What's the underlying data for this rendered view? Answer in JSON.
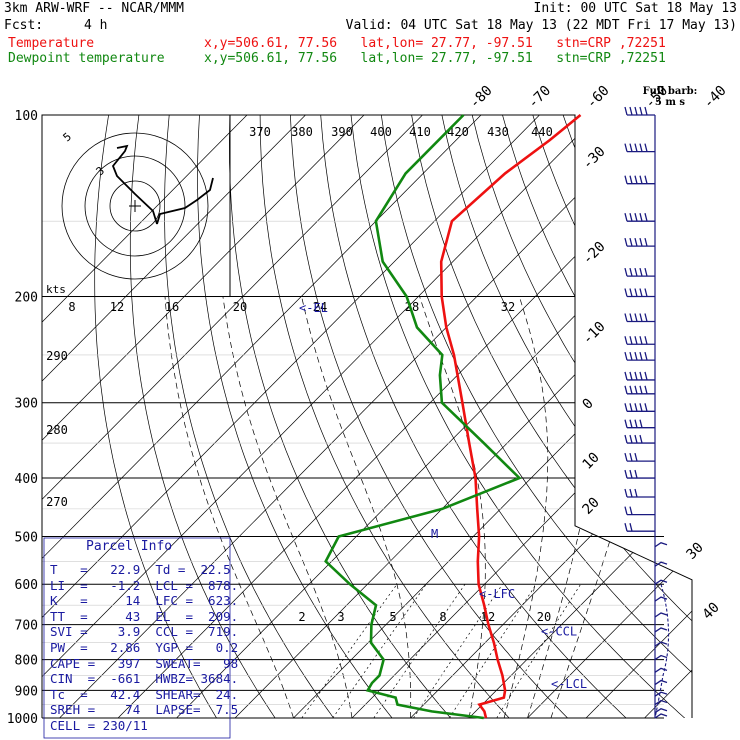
{
  "header": {
    "model": "3km ARW-WRF -- NCAR/MMM",
    "init": "Init: 00 UTC Sat 18 May 13",
    "fcst_label": "Fcst:",
    "fcst_value": "4 h",
    "valid": "Valid: 04 UTC Sat 18 May 13 (22 MDT Fri 17 May 13)",
    "temp_label": "Temperature",
    "temp_info": "x,y=506.61, 77.56   lat,lon= 27.77, -97.51   stn=CRP ,72251",
    "dew_label": "Dewpoint temperature",
    "dew_info": "x,y=506.61, 77.56   lat,lon= 27.77, -97.51   stn=CRP ,72251"
  },
  "colors": {
    "temperature": "#ee1111",
    "dewpoint": "#118811",
    "info": "#1a1aa0",
    "wind": "#1a1a80"
  },
  "chart_data": {
    "type": "line",
    "pressure_levels": [
      "100",
      "200",
      "300",
      "400",
      "500",
      "600",
      "700",
      "800",
      "900",
      "1000"
    ],
    "isotherm_labels": [
      "-80",
      "-70",
      "-60",
      "-50",
      "-40",
      "-30",
      "-20",
      "-10",
      "0",
      "10",
      "20",
      "30",
      "40"
    ],
    "theta_labels": [
      "370",
      "380",
      "390",
      "400",
      "410",
      "420",
      "430",
      "440"
    ],
    "theta_lower_labels": [
      "290",
      "280",
      "270"
    ],
    "mixing_ratio_labels": [
      "2",
      "3",
      "5",
      "8",
      "12",
      "20"
    ],
    "hodo_speed_labels": [
      "8",
      "12",
      "16",
      "20",
      "24",
      "28",
      "32"
    ],
    "hodo_unit": "kts",
    "hodo_ring_labels": [
      "5",
      "3"
    ],
    "temperature": [
      {
        "p": 1000,
        "t": 22.9
      },
      {
        "p": 975,
        "t": 21.5
      },
      {
        "p": 950,
        "t": 19.5
      },
      {
        "p": 925,
        "t": 22.5
      },
      {
        "p": 900,
        "t": 21.5
      },
      {
        "p": 850,
        "t": 18.5
      },
      {
        "p": 800,
        "t": 15.0
      },
      {
        "p": 750,
        "t": 11.5
      },
      {
        "p": 700,
        "t": 7.5
      },
      {
        "p": 650,
        "t": 3.5
      },
      {
        "p": 600,
        "t": -1.0
      },
      {
        "p": 550,
        "t": -5.0
      },
      {
        "p": 500,
        "t": -9.0
      },
      {
        "p": 450,
        "t": -14.0
      },
      {
        "p": 400,
        "t": -19.5
      },
      {
        "p": 350,
        "t": -26.5
      },
      {
        "p": 300,
        "t": -34.5
      },
      {
        "p": 250,
        "t": -44.0
      },
      {
        "p": 225,
        "t": -50.0
      },
      {
        "p": 200,
        "t": -56.0
      },
      {
        "p": 175,
        "t": -62.0
      },
      {
        "p": 150,
        "t": -67.0
      },
      {
        "p": 125,
        "t": -66.0
      },
      {
        "p": 110,
        "t": -64.0
      },
      {
        "p": 100,
        "t": -63.0
      }
    ],
    "dewpoint": [
      {
        "p": 1000,
        "t": 22.5
      },
      {
        "p": 975,
        "t": 12.5
      },
      {
        "p": 950,
        "t": 5.5
      },
      {
        "p": 925,
        "t": 4.0
      },
      {
        "p": 900,
        "t": -2.0
      },
      {
        "p": 875,
        "t": -2.5
      },
      {
        "p": 850,
        "t": -2.5
      },
      {
        "p": 800,
        "t": -4.5
      },
      {
        "p": 750,
        "t": -9.5
      },
      {
        "p": 700,
        "t": -12.5
      },
      {
        "p": 650,
        "t": -15.0
      },
      {
        "p": 600,
        "t": -23.0
      },
      {
        "p": 550,
        "t": -31.0
      },
      {
        "p": 500,
        "t": -33.0
      },
      {
        "p": 450,
        "t": -20.0
      },
      {
        "p": 400,
        "t": -12.0
      },
      {
        "p": 350,
        "t": -24.0
      },
      {
        "p": 300,
        "t": -38.0
      },
      {
        "p": 270,
        "t": -43.0
      },
      {
        "p": 250,
        "t": -46.0
      },
      {
        "p": 225,
        "t": -55.0
      },
      {
        "p": 200,
        "t": -62.0
      },
      {
        "p": 175,
        "t": -72.0
      },
      {
        "p": 150,
        "t": -80.0
      },
      {
        "p": 125,
        "t": -83.0
      },
      {
        "p": 100,
        "t": -83.0
      }
    ],
    "level_markers": [
      {
        "label": "<-EL",
        "p": 209
      },
      {
        "label": "<-LFC",
        "p": 623
      },
      {
        "label": "<-CCL",
        "p": 719
      },
      {
        "label": "<-LCL",
        "p": 878
      },
      {
        "label": "M",
        "p": 495
      }
    ]
  },
  "parcel_info": {
    "title": "Parcel Info",
    "rows": [
      "T   =   22.9  Td =  22.5",
      "LI  =   -1.2  LCL =  878.",
      "K   =     14  LFC =  623.",
      "TT  =     43  EL  =  209.",
      "SVI =    3.9  CCL =  719.",
      "PW  =   2.86  YGP =   0.2",
      "CAPE =   397  SWEAT=   98",
      "CIN  =  -661  HWBZ= 3684.",
      "Tc  =   42.4  SHEAR=  24.",
      "SREH =    74  LAPSE=  7.5",
      "CELL = 230/11"
    ]
  },
  "barb_legend": {
    "line1": "Full barb:",
    "line2": "5 m s"
  }
}
